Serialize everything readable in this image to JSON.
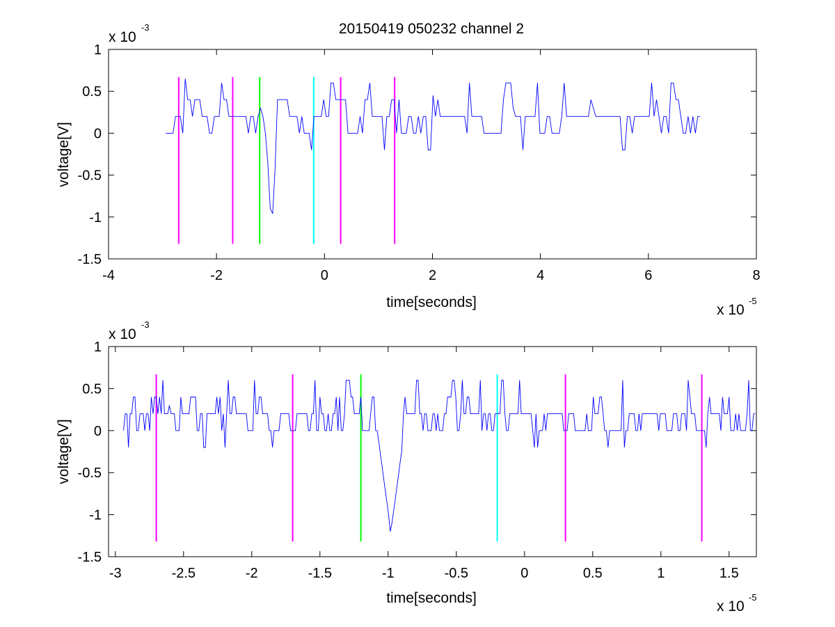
{
  "figure": {
    "title": "20150419 050232 channel 2",
    "colors": {
      "signal": "#0000ff",
      "magenta": "#ff00ff",
      "green": "#00ff00",
      "cyan": "#00ffff",
      "axis": "#000000",
      "background": "#ffffff"
    }
  },
  "chart_data": [
    {
      "type": "line",
      "title": "20150419 050232 channel 2",
      "xlabel": "time[seconds]",
      "ylabel": "voltage[V]",
      "xlim": [
        -4,
        8
      ],
      "ylim": [
        -1.5,
        1
      ],
      "x_ticks": [
        -4,
        -2,
        0,
        2,
        4,
        6,
        8
      ],
      "x_tick_labels": [
        "-4",
        "-2",
        "0",
        "2",
        "4",
        "6",
        "8"
      ],
      "y_ticks": [
        -1.5,
        -1,
        -0.5,
        0,
        0.5,
        1
      ],
      "y_tick_labels": [
        "-1.5",
        "-1",
        "-0.5",
        "0",
        "0.5",
        "1"
      ],
      "x_multiplier": {
        "base": "x 10",
        "exponent": "-5"
      },
      "y_multiplier": {
        "base": "x 10",
        "exponent": "-3"
      },
      "grid": false,
      "series": [
        {
          "color": "#0000ff",
          "x_range": [
            -2.94,
            7.0
          ],
          "x": [
            -2.94,
            -2.72,
            -2.6,
            -1.6,
            -1.2,
            -1.0,
            -0.98,
            -0.96,
            -0.5,
            0.0,
            1.0,
            2.0,
            2.7,
            3.5,
            4.45,
            5.0,
            6.0,
            7.0
          ],
          "y": [
            0.0,
            0.2,
            0.65,
            0.2,
            0.3,
            -0.2,
            -1.2,
            -0.1,
            0.2,
            0.4,
            0.2,
            0.45,
            0.6,
            0.3,
            0.6,
            0.3,
            0.2,
            0.2
          ],
          "baseline_levels": [
            0.0,
            0.2
          ],
          "noise_range": [
            -0.2,
            0.6
          ],
          "spike": {
            "x": -0.98,
            "y": -1.2
          }
        }
      ],
      "vertical_markers": [
        {
          "x": -2.7,
          "color": "#ff00ff",
          "y_range": [
            -1.32,
            0.67
          ]
        },
        {
          "x": -1.7,
          "color": "#ff00ff",
          "y_range": [
            -1.32,
            0.67
          ]
        },
        {
          "x": -1.2,
          "color": "#00ff00",
          "y_range": [
            -1.32,
            0.67
          ]
        },
        {
          "x": -0.2,
          "color": "#00ffff",
          "y_range": [
            -1.32,
            0.67
          ]
        },
        {
          "x": 0.3,
          "color": "#ff00ff",
          "y_range": [
            -1.32,
            0.67
          ]
        },
        {
          "x": 1.3,
          "color": "#ff00ff",
          "y_range": [
            -1.32,
            0.67
          ]
        }
      ]
    },
    {
      "type": "line",
      "xlabel": "time[seconds]",
      "ylabel": "voltage[V]",
      "xlim": [
        -3.05,
        1.7
      ],
      "ylim": [
        -1.5,
        1
      ],
      "x_ticks": [
        -3,
        -2.5,
        -2,
        -1.5,
        -1,
        -0.5,
        0,
        0.5,
        1,
        1.5
      ],
      "x_tick_labels": [
        "-3",
        "-2.5",
        "-2",
        "-1.5",
        "-1",
        "-0.5",
        "0",
        "0.5",
        "1",
        "1.5"
      ],
      "y_ticks": [
        -1.5,
        -1,
        -0.5,
        0,
        0.5,
        1
      ],
      "y_tick_labels": [
        "-1.5",
        "-1",
        "-0.5",
        "0",
        "0.5",
        "1"
      ],
      "x_multiplier": {
        "base": "x 10",
        "exponent": "-5"
      },
      "y_multiplier": {
        "base": "x 10",
        "exponent": "-3"
      },
      "grid": false,
      "series": [
        {
          "color": "#0000ff",
          "x_range": [
            -2.94,
            1.7
          ],
          "x": [
            -2.94,
            -2.9,
            -2.72,
            -2.65,
            -2.6,
            -1.6,
            -1.5,
            -1.2,
            -1.0,
            -0.98,
            -0.96,
            -0.5,
            0.0,
            0.5,
            1.0,
            1.5,
            1.7
          ],
          "y": [
            0.0,
            -0.2,
            0.2,
            0.6,
            0.3,
            0.2,
            0.4,
            0.4,
            -0.2,
            -1.2,
            -0.1,
            0.4,
            0.2,
            0.4,
            0.2,
            0.4,
            0.2
          ],
          "baseline_levels": [
            0.0,
            0.2
          ],
          "noise_range": [
            -0.2,
            0.6
          ],
          "spike": {
            "x": -0.98,
            "y": -1.2
          }
        }
      ],
      "vertical_markers": [
        {
          "x": -2.7,
          "color": "#ff00ff",
          "y_range": [
            -1.32,
            0.67
          ]
        },
        {
          "x": -1.7,
          "color": "#ff00ff",
          "y_range": [
            -1.32,
            0.67
          ]
        },
        {
          "x": -1.2,
          "color": "#00ff00",
          "y_range": [
            -1.32,
            0.67
          ]
        },
        {
          "x": -0.2,
          "color": "#00ffff",
          "y_range": [
            -1.32,
            0.67
          ]
        },
        {
          "x": 0.3,
          "color": "#ff00ff",
          "y_range": [
            -1.32,
            0.67
          ]
        },
        {
          "x": 1.3,
          "color": "#ff00ff",
          "y_range": [
            -1.32,
            0.67
          ]
        }
      ]
    }
  ]
}
